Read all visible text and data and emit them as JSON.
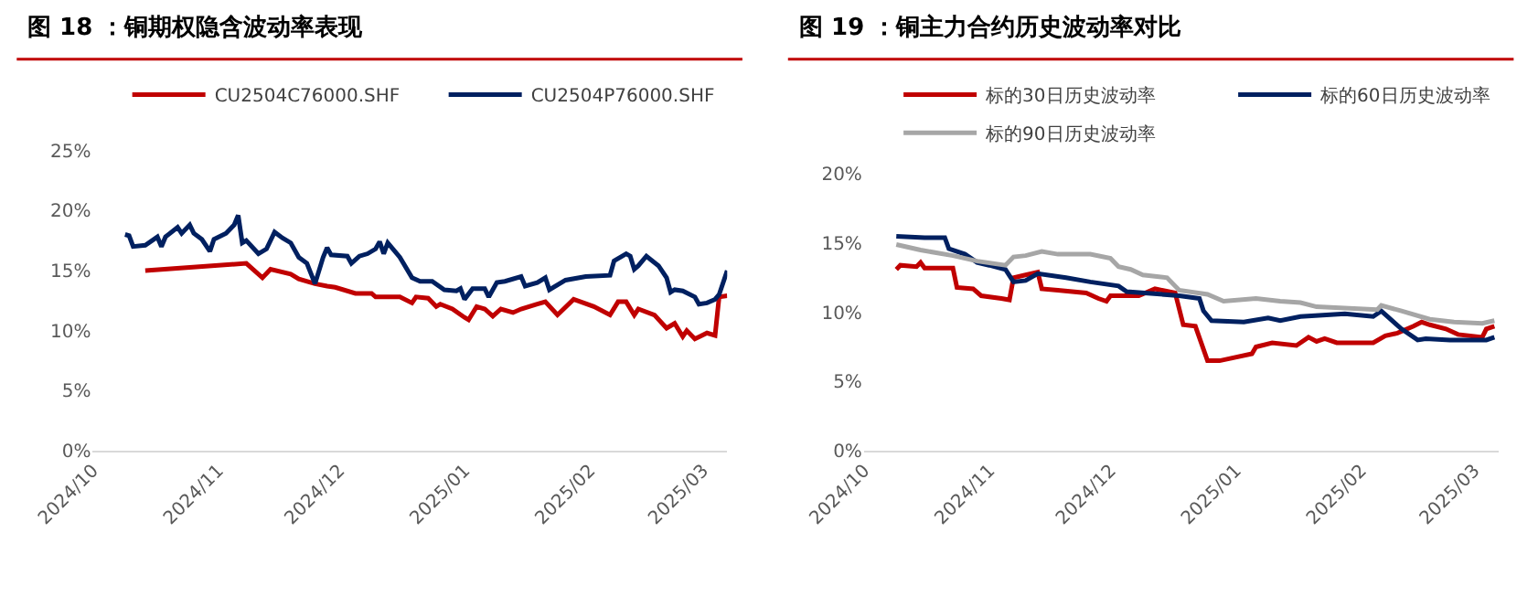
{
  "chart_data": [
    {
      "type": "line",
      "title": "图 18 ：铜期权隐含波动率表现",
      "legend": "top",
      "grid": false,
      "line_style": "solid",
      "marker": "none",
      "xlim": [
        "2024-10-01",
        "2025-03-07"
      ],
      "xticks": [
        {
          "value": "2024-10-01",
          "label": "2024/10"
        },
        {
          "value": "2024-11-01",
          "label": "2024/11"
        },
        {
          "value": "2024-12-01",
          "label": "2024/12"
        },
        {
          "value": "2025-01-01",
          "label": "2025/01"
        },
        {
          "value": "2025-02-01",
          "label": "2025/02"
        },
        {
          "value": "2025-03-01",
          "label": "2025/03"
        }
      ],
      "ylim": [
        0,
        25
      ],
      "yticks": [
        {
          "value": 0,
          "label": "0%"
        },
        {
          "value": 5,
          "label": "5%"
        },
        {
          "value": 10,
          "label": "10%"
        },
        {
          "value": 15,
          "label": "15%"
        },
        {
          "value": 20,
          "label": "20%"
        },
        {
          "value": 25,
          "label": "25%"
        }
      ],
      "series": [
        {
          "name": "CU2504C76000.SHF",
          "color": "#c00000",
          "x": [
            "2024-10-14",
            "2024-11-08",
            "2024-11-12",
            "2024-11-14",
            "2024-11-19",
            "2024-11-21",
            "2024-11-25",
            "2024-11-28",
            "2024-11-30",
            "2024-12-05",
            "2024-12-09",
            "2024-12-10",
            "2024-12-16",
            "2024-12-19",
            "2024-12-20",
            "2024-12-23",
            "2024-12-25",
            "2024-12-26",
            "2024-12-29",
            "2025-01-01",
            "2025-01-02",
            "2025-01-04",
            "2025-01-06",
            "2025-01-08",
            "2025-01-10",
            "2025-01-13",
            "2025-01-15",
            "2025-01-19",
            "2025-01-21",
            "2025-01-24",
            "2025-01-28",
            "2025-02-02",
            "2025-02-06",
            "2025-02-08",
            "2025-02-10",
            "2025-02-12",
            "2025-02-13",
            "2025-02-17",
            "2025-02-20",
            "2025-02-22",
            "2025-02-24",
            "2025-02-25",
            "2025-02-27",
            "2025-03-02",
            "2025-03-04",
            "2025-03-05",
            "2025-03-07"
          ],
          "values": [
            15.0,
            15.6,
            14.4,
            15.1,
            14.7,
            14.3,
            13.9,
            13.7,
            13.6,
            13.1,
            13.1,
            12.8,
            12.8,
            12.3,
            12.8,
            12.7,
            12.0,
            12.2,
            11.8,
            11.1,
            10.9,
            12.0,
            11.8,
            11.2,
            11.8,
            11.5,
            11.8,
            12.2,
            12.4,
            11.3,
            12.6,
            12.0,
            11.3,
            12.4,
            12.4,
            11.3,
            11.8,
            11.3,
            10.2,
            10.6,
            9.5,
            10.0,
            9.3,
            9.8,
            9.6,
            12.8,
            12.9
          ]
        },
        {
          "name": "CU2504P76000.SHF",
          "color": "#002060",
          "x": [
            "2024-10-09",
            "2024-10-10",
            "2024-10-11",
            "2024-10-14",
            "2024-10-17",
            "2024-10-18",
            "2024-10-19",
            "2024-10-22",
            "2024-10-23",
            "2024-10-25",
            "2024-10-26",
            "2024-10-28",
            "2024-10-30",
            "2024-10-31",
            "2024-11-03",
            "2024-11-05",
            "2024-11-06",
            "2024-11-07",
            "2024-11-08",
            "2024-11-11",
            "2024-11-13",
            "2024-11-15",
            "2024-11-17",
            "2024-11-19",
            "2024-11-21",
            "2024-11-23",
            "2024-11-25",
            "2024-11-27",
            "2024-11-28",
            "2024-11-29",
            "2024-12-03",
            "2024-12-04",
            "2024-12-06",
            "2024-12-08",
            "2024-12-10",
            "2024-12-11",
            "2024-12-12",
            "2024-12-13",
            "2024-12-16",
            "2024-12-19",
            "2024-12-21",
            "2024-12-24",
            "2024-12-27",
            "2024-12-30",
            "2024-12-31",
            "2025-01-01",
            "2025-01-03",
            "2025-01-06",
            "2025-01-07",
            "2025-01-09",
            "2025-01-11",
            "2025-01-15",
            "2025-01-16",
            "2025-01-19",
            "2025-01-21",
            "2025-01-22",
            "2025-01-26",
            "2025-01-31",
            "2025-02-06",
            "2025-02-07",
            "2025-02-10",
            "2025-02-11",
            "2025-02-12",
            "2025-02-13",
            "2025-02-15",
            "2025-02-18",
            "2025-02-20",
            "2025-02-21",
            "2025-02-22",
            "2025-02-24",
            "2025-02-27",
            "2025-02-28",
            "2025-03-02",
            "2025-03-04",
            "2025-03-05",
            "2025-03-07"
          ],
          "values": [
            18.0,
            17.9,
            17.0,
            17.1,
            17.8,
            17.0,
            17.8,
            18.6,
            18.1,
            18.8,
            18.1,
            17.6,
            16.6,
            17.6,
            18.1,
            18.8,
            19.6,
            17.3,
            17.5,
            16.4,
            16.8,
            18.2,
            17.7,
            17.3,
            16.1,
            15.6,
            13.9,
            16.1,
            16.9,
            16.3,
            16.2,
            15.6,
            16.2,
            16.4,
            16.8,
            17.4,
            16.4,
            17.3,
            16.1,
            14.4,
            14.1,
            14.1,
            13.4,
            13.3,
            13.5,
            12.6,
            13.5,
            13.5,
            12.8,
            14.0,
            14.1,
            14.5,
            13.7,
            14.0,
            14.4,
            13.4,
            14.2,
            14.5,
            14.6,
            15.8,
            16.4,
            16.2,
            15.1,
            15.4,
            16.2,
            15.4,
            14.4,
            13.2,
            13.4,
            13.3,
            12.8,
            12.2,
            12.3,
            12.6,
            13.0,
            15.0
          ]
        }
      ]
    },
    {
      "type": "line",
      "title": "图 19 ：铜主力合约历史波动率对比",
      "legend": "top",
      "grid": false,
      "line_style": "solid",
      "marker": "none",
      "xlim": [
        "2024-10-01",
        "2025-03-07"
      ],
      "xticks": [
        {
          "value": "2024-10-01",
          "label": "2024/10"
        },
        {
          "value": "2024-11-01",
          "label": "2024/11"
        },
        {
          "value": "2024-12-01",
          "label": "2024/12"
        },
        {
          "value": "2025-01-01",
          "label": "2025/01"
        },
        {
          "value": "2025-02-01",
          "label": "2025/02"
        },
        {
          "value": "2025-03-01",
          "label": "2025/03"
        }
      ],
      "ylim": [
        0,
        20
      ],
      "yticks": [
        {
          "value": 0,
          "label": "0%"
        },
        {
          "value": 5,
          "label": "5%"
        },
        {
          "value": 10,
          "label": "10%"
        },
        {
          "value": 15,
          "label": "15%"
        },
        {
          "value": 20,
          "label": "20%"
        }
      ],
      "series": [
        {
          "name": "标的30日历史波动率",
          "color": "#c00000",
          "x": [
            "2024-10-09",
            "2024-10-10",
            "2024-10-14",
            "2024-10-15",
            "2024-10-16",
            "2024-10-23",
            "2024-10-24",
            "2024-10-28",
            "2024-10-30",
            "2024-11-04",
            "2024-11-06",
            "2024-11-07",
            "2024-11-10",
            "2024-11-13",
            "2024-11-14",
            "2024-11-18",
            "2024-11-25",
            "2024-11-28",
            "2024-11-30",
            "2024-12-01",
            "2024-12-08",
            "2024-12-12",
            "2024-12-17",
            "2024-12-19",
            "2024-12-22",
            "2024-12-25",
            "2024-12-28",
            "2025-01-05",
            "2025-01-06",
            "2025-01-10",
            "2025-01-16",
            "2025-01-19",
            "2025-01-21",
            "2025-01-23",
            "2025-01-26",
            "2025-02-04",
            "2025-02-07",
            "2025-02-10",
            "2025-02-14",
            "2025-02-16",
            "2025-02-18",
            "2025-02-22",
            "2025-02-25",
            "2025-03-03",
            "2025-03-04",
            "2025-03-06"
          ],
          "values": [
            13.1,
            13.4,
            13.3,
            13.6,
            13.2,
            13.2,
            11.8,
            11.7,
            11.2,
            11.0,
            10.9,
            12.5,
            12.7,
            12.9,
            11.7,
            11.6,
            11.4,
            11.0,
            10.8,
            11.2,
            11.2,
            11.7,
            11.4,
            9.1,
            9.0,
            6.5,
            6.5,
            7.0,
            7.5,
            7.8,
            7.6,
            8.2,
            7.9,
            8.1,
            7.8,
            7.8,
            8.3,
            8.5,
            9.0,
            9.3,
            9.1,
            8.8,
            8.4,
            8.2,
            8.8,
            9.0
          ]
        },
        {
          "name": "标的60日历史波动率",
          "color": "#002060",
          "x": [
            "2024-10-09",
            "2024-10-16",
            "2024-10-21",
            "2024-10-22",
            "2024-10-26",
            "2024-10-29",
            "2024-11-01",
            "2024-11-05",
            "2024-11-07",
            "2024-11-10",
            "2024-11-13",
            "2024-11-20",
            "2024-11-26",
            "2024-12-03",
            "2024-12-05",
            "2024-12-18",
            "2024-12-23",
            "2024-12-24",
            "2024-12-26",
            "2025-01-03",
            "2025-01-09",
            "2025-01-12",
            "2025-01-17",
            "2025-01-28",
            "2025-02-04",
            "2025-02-06",
            "2025-02-11",
            "2025-02-15",
            "2025-02-17",
            "2025-02-23",
            "2025-03-04",
            "2025-03-06"
          ],
          "values": [
            15.5,
            15.4,
            15.4,
            14.6,
            14.2,
            13.6,
            13.4,
            13.1,
            12.2,
            12.3,
            12.8,
            12.5,
            12.2,
            11.9,
            11.5,
            11.2,
            11.0,
            10.1,
            9.4,
            9.3,
            9.6,
            9.4,
            9.7,
            9.9,
            9.7,
            10.1,
            8.8,
            8.0,
            8.1,
            8.0,
            8.0,
            8.2
          ]
        },
        {
          "name": "标的90日历史波动率",
          "color": "#a6a6a6",
          "x": [
            "2024-10-09",
            "2024-10-15",
            "2024-10-23",
            "2024-10-29",
            "2024-11-05",
            "2024-11-07",
            "2024-11-10",
            "2024-11-14",
            "2024-11-18",
            "2024-11-26",
            "2024-12-01",
            "2024-12-03",
            "2024-12-06",
            "2024-12-09",
            "2024-12-15",
            "2024-12-18",
            "2024-12-25",
            "2024-12-29",
            "2025-01-06",
            "2025-01-12",
            "2025-01-17",
            "2025-01-21",
            "2025-02-05",
            "2025-02-06",
            "2025-02-11",
            "2025-02-18",
            "2025-02-24",
            "2025-03-03",
            "2025-03-06"
          ],
          "values": [
            14.9,
            14.5,
            14.1,
            13.7,
            13.4,
            14.0,
            14.1,
            14.4,
            14.2,
            14.2,
            13.9,
            13.3,
            13.1,
            12.7,
            12.5,
            11.6,
            11.3,
            10.8,
            11.0,
            10.8,
            10.7,
            10.4,
            10.2,
            10.5,
            10.1,
            9.5,
            9.3,
            9.2,
            9.4
          ]
        }
      ]
    }
  ]
}
